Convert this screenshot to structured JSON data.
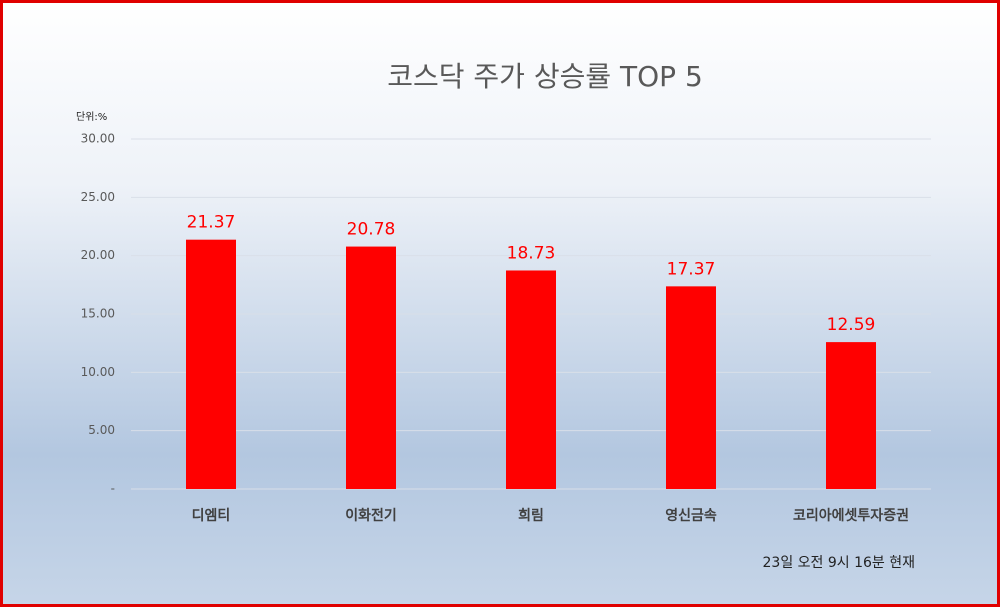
{
  "chart_data": {
    "type": "bar",
    "title": "코스닥 주가 상승률 TOP 5",
    "unit": "단위:%",
    "annotation": "23일  오전 9시 16분 현재",
    "categories": [
      "디엠티",
      "이화전기",
      "희림",
      "영신금속",
      "코리아에셋투자증권"
    ],
    "values": [
      21.37,
      20.78,
      18.73,
      17.37,
      12.59
    ],
    "color": "#ff0000",
    "ylim": [
      0,
      30
    ],
    "yticks": [
      {
        "value": 0,
        "label": "-"
      },
      {
        "value": 5,
        "label": "5.00"
      },
      {
        "value": 10,
        "label": "10.00"
      },
      {
        "value": 15,
        "label": "15.00"
      },
      {
        "value": 20,
        "label": "20.00"
      },
      {
        "value": 25,
        "label": "25.00"
      },
      {
        "value": 30,
        "label": "30.00"
      }
    ],
    "grid": true
  }
}
